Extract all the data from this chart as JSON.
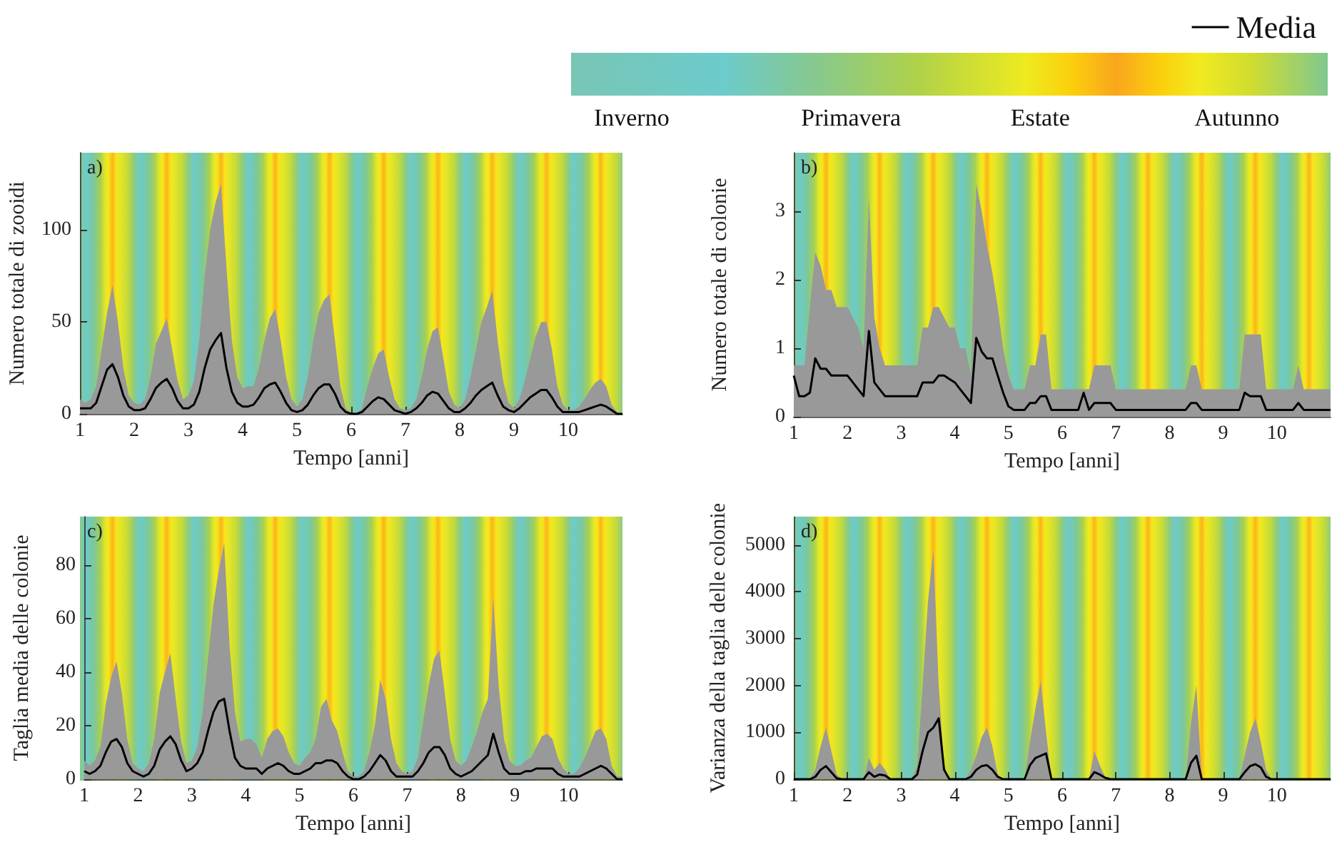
{
  "chart_data": [
    {
      "type": "line",
      "title": "a)",
      "xlabel": "Tempo [anni]",
      "ylabel": "Numero totale di zooidi",
      "legend": "top right",
      "annotations": [
        "Inverno",
        "Primavera",
        "Estate",
        "Autunno"
      ],
      "xlim": [
        1,
        11
      ],
      "xticks": [
        1,
        2,
        3,
        4,
        5,
        6,
        7,
        8,
        9,
        10
      ],
      "ylim": [
        0,
        142
      ],
      "yticks": [
        0,
        50,
        100
      ],
      "x": [
        1,
        1.1,
        1.2,
        1.3,
        1.4,
        1.5,
        1.6,
        1.7,
        1.8,
        1.9,
        2,
        2.1,
        2.2,
        2.3,
        2.4,
        2.5,
        2.6,
        2.7,
        2.8,
        2.9,
        3,
        3.1,
        3.2,
        3.3,
        3.4,
        3.5,
        3.6,
        3.7,
        3.8,
        3.9,
        4,
        4.1,
        4.2,
        4.3,
        4.4,
        4.5,
        4.6,
        4.7,
        4.8,
        4.9,
        5,
        5.1,
        5.2,
        5.3,
        5.4,
        5.5,
        5.6,
        5.7,
        5.8,
        5.9,
        6,
        6.1,
        6.2,
        6.3,
        6.4,
        6.5,
        6.6,
        6.7,
        6.8,
        6.9,
        7,
        7.1,
        7.2,
        7.3,
        7.4,
        7.5,
        7.6,
        7.7,
        7.8,
        7.9,
        8,
        8.1,
        8.2,
        8.3,
        8.4,
        8.5,
        8.6,
        8.7,
        8.8,
        8.9,
        9,
        9.1,
        9.2,
        9.3,
        9.4,
        9.5,
        9.6,
        9.7,
        9.8,
        9.9,
        10,
        10.1,
        10.2,
        10.3,
        10.4,
        10.5,
        10.6,
        10.7,
        10.8,
        10.9,
        11
      ],
      "series": [
        {
          "type": "area",
          "color": "#999999",
          "values": [
            8,
            6,
            8,
            15,
            35,
            55,
            70,
            50,
            25,
            10,
            6,
            5,
            8,
            20,
            38,
            45,
            52,
            35,
            18,
            8,
            10,
            18,
            40,
            75,
            100,
            115,
            125,
            80,
            40,
            20,
            14,
            15,
            15,
            25,
            40,
            52,
            57,
            40,
            20,
            8,
            4,
            8,
            20,
            40,
            55,
            62,
            65,
            40,
            15,
            3,
            0,
            0,
            3,
            15,
            25,
            33,
            35,
            20,
            8,
            3,
            2,
            3,
            8,
            20,
            35,
            45,
            47,
            30,
            12,
            5,
            3,
            8,
            20,
            35,
            50,
            58,
            67,
            40,
            18,
            6,
            3,
            8,
            18,
            30,
            42,
            50,
            50,
            35,
            15,
            5,
            2,
            2,
            4,
            8,
            13,
            17,
            19,
            15,
            5,
            1,
            0
          ]
        },
        {
          "type": "line",
          "name": "Media",
          "color": "#000000",
          "values": [
            3,
            3,
            3,
            6,
            15,
            24,
            27,
            20,
            10,
            4,
            2,
            2,
            3,
            8,
            14,
            17,
            19,
            14,
            7,
            3,
            3,
            5,
            12,
            25,
            35,
            40,
            44,
            25,
            12,
            6,
            4,
            4,
            5,
            9,
            14,
            16,
            17,
            12,
            6,
            2,
            1,
            2,
            5,
            10,
            14,
            16,
            16,
            11,
            4,
            1,
            0,
            0,
            1,
            4,
            7,
            9,
            8,
            5,
            2,
            1,
            0,
            1,
            3,
            6,
            10,
            12,
            11,
            7,
            3,
            1,
            1,
            3,
            6,
            10,
            13,
            15,
            17,
            10,
            4,
            2,
            1,
            3,
            6,
            9,
            11,
            13,
            13,
            9,
            4,
            1,
            1,
            1,
            1,
            2,
            3,
            4,
            5,
            4,
            2,
            0,
            0
          ]
        }
      ]
    },
    {
      "type": "line",
      "title": "b)",
      "xlabel": "Tempo [anni]",
      "ylabel": "Numero totale di colonie",
      "xlim": [
        1,
        11
      ],
      "xticks": [
        1,
        2,
        3,
        4,
        5,
        6,
        7,
        8,
        9,
        10
      ],
      "ylim": [
        0,
        3.85
      ],
      "yticks": [
        0,
        1,
        2,
        3
      ],
      "x": [
        1,
        1.1,
        1.2,
        1.3,
        1.4,
        1.5,
        1.6,
        1.7,
        1.8,
        1.9,
        2,
        2.1,
        2.2,
        2.3,
        2.4,
        2.5,
        2.6,
        2.7,
        2.8,
        2.9,
        3,
        3.1,
        3.2,
        3.3,
        3.4,
        3.5,
        3.6,
        3.7,
        3.8,
        3.9,
        4,
        4.1,
        4.2,
        4.3,
        4.4,
        4.5,
        4.6,
        4.7,
        4.8,
        4.9,
        5,
        5.1,
        5.2,
        5.3,
        5.4,
        5.5,
        5.6,
        5.7,
        5.8,
        5.9,
        6,
        6.1,
        6.2,
        6.3,
        6.4,
        6.5,
        6.6,
        6.7,
        6.8,
        6.9,
        7,
        7.1,
        7.2,
        7.3,
        7.4,
        7.5,
        7.6,
        7.7,
        7.8,
        7.9,
        8,
        8.1,
        8.2,
        8.3,
        8.4,
        8.5,
        8.6,
        8.7,
        8.8,
        8.9,
        9,
        9.1,
        9.2,
        9.3,
        9.4,
        9.5,
        9.6,
        9.7,
        9.8,
        9.9,
        10,
        10.1,
        10.2,
        10.3,
        10.4,
        10.5,
        10.6,
        10.7,
        10.8,
        10.9,
        11
      ],
      "series": [
        {
          "type": "area",
          "color": "#999999",
          "values": [
            0.75,
            0.75,
            0.75,
            1.6,
            2.4,
            2.2,
            1.85,
            1.85,
            1.6,
            1.6,
            1.6,
            1.45,
            1.3,
            1,
            3.2,
            1.45,
            1,
            0.75,
            0.75,
            0.75,
            0.75,
            0.75,
            0.75,
            0.75,
            1.3,
            1.3,
            1.6,
            1.6,
            1.45,
            1.3,
            1.3,
            1,
            1,
            0.6,
            3.4,
            3,
            2.5,
            2.1,
            1.6,
            1,
            0.6,
            0.4,
            0.4,
            0.4,
            0.75,
            0.75,
            1.2,
            1.2,
            0.4,
            0.4,
            0.4,
            0.4,
            0.4,
            0.4,
            0.4,
            0.4,
            0.75,
            0.75,
            0.75,
            0.75,
            0.4,
            0.4,
            0.4,
            0.4,
            0.4,
            0.4,
            0.4,
            0.4,
            0.4,
            0.4,
            0.4,
            0.4,
            0.4,
            0.4,
            0.75,
            0.75,
            0.4,
            0.4,
            0.4,
            0.4,
            0.4,
            0.4,
            0.4,
            0.4,
            1.2,
            1.2,
            1.2,
            1.2,
            0.4,
            0.4,
            0.4,
            0.4,
            0.4,
            0.4,
            0.75,
            0.4,
            0.4,
            0.4,
            0.4,
            0.4,
            0.4
          ]
        },
        {
          "type": "line",
          "color": "#000000",
          "values": [
            0.6,
            0.3,
            0.3,
            0.35,
            0.85,
            0.7,
            0.7,
            0.6,
            0.6,
            0.6,
            0.6,
            0.5,
            0.4,
            0.3,
            1.25,
            0.5,
            0.4,
            0.3,
            0.3,
            0.3,
            0.3,
            0.3,
            0.3,
            0.3,
            0.5,
            0.5,
            0.5,
            0.6,
            0.6,
            0.55,
            0.5,
            0.4,
            0.3,
            0.2,
            1.15,
            0.95,
            0.85,
            0.85,
            0.6,
            0.35,
            0.15,
            0.1,
            0.1,
            0.1,
            0.2,
            0.2,
            0.3,
            0.3,
            0.1,
            0.1,
            0.1,
            0.1,
            0.1,
            0.1,
            0.35,
            0.1,
            0.2,
            0.2,
            0.2,
            0.2,
            0.1,
            0.1,
            0.1,
            0.1,
            0.1,
            0.1,
            0.1,
            0.1,
            0.1,
            0.1,
            0.1,
            0.1,
            0.1,
            0.1,
            0.2,
            0.2,
            0.1,
            0.1,
            0.1,
            0.1,
            0.1,
            0.1,
            0.1,
            0.1,
            0.35,
            0.3,
            0.3,
            0.3,
            0.1,
            0.1,
            0.1,
            0.1,
            0.1,
            0.1,
            0.2,
            0.1,
            0.1,
            0.1,
            0.1,
            0.1,
            0.1
          ]
        }
      ]
    },
    {
      "type": "line",
      "title": "c)",
      "xlabel": "Tempo [anni]",
      "ylabel": "Taglia media delle colonie",
      "xlim": [
        1,
        11
      ],
      "xticks": [
        1,
        2,
        3,
        4,
        5,
        6,
        7,
        8,
        9,
        10
      ],
      "ylim": [
        0,
        98
      ],
      "yticks": [
        0,
        20,
        40,
        60,
        80
      ],
      "x": [
        1,
        1.1,
        1.2,
        1.3,
        1.4,
        1.5,
        1.6,
        1.7,
        1.8,
        1.9,
        2,
        2.1,
        2.2,
        2.3,
        2.4,
        2.5,
        2.6,
        2.7,
        2.8,
        2.9,
        3,
        3.1,
        3.2,
        3.3,
        3.4,
        3.5,
        3.6,
        3.7,
        3.8,
        3.9,
        4,
        4.1,
        4.2,
        4.3,
        4.4,
        4.5,
        4.6,
        4.7,
        4.8,
        4.9,
        5,
        5.1,
        5.2,
        5.3,
        5.4,
        5.5,
        5.6,
        5.7,
        5.8,
        5.9,
        6,
        6.1,
        6.2,
        6.3,
        6.4,
        6.5,
        6.6,
        6.7,
        6.8,
        6.9,
        7,
        7.1,
        7.2,
        7.3,
        7.4,
        7.5,
        7.6,
        7.7,
        7.8,
        7.9,
        8,
        8.1,
        8.2,
        8.3,
        8.4,
        8.5,
        8.6,
        8.7,
        8.8,
        8.9,
        9,
        9.1,
        9.2,
        9.3,
        9.4,
        9.5,
        9.6,
        9.7,
        9.8,
        9.9,
        10,
        10.1,
        10.2,
        10.3,
        10.4,
        10.5,
        10.6,
        10.7,
        10.8,
        10.9,
        11
      ],
      "series": [
        {
          "type": "area",
          "color": "#999999",
          "values": [
            7,
            5,
            7,
            12,
            28,
            38,
            44,
            32,
            15,
            6,
            4,
            3,
            6,
            15,
            32,
            40,
            47,
            30,
            14,
            6,
            7,
            12,
            25,
            45,
            65,
            78,
            88,
            50,
            25,
            14,
            15,
            15,
            13,
            8,
            15,
            18,
            19,
            16,
            10,
            6,
            5,
            8,
            10,
            15,
            27,
            30,
            22,
            18,
            10,
            3,
            1,
            1,
            3,
            10,
            20,
            37,
            30,
            15,
            6,
            3,
            2,
            3,
            8,
            22,
            35,
            45,
            48,
            32,
            15,
            7,
            5,
            7,
            12,
            18,
            25,
            30,
            68,
            35,
            15,
            7,
            5,
            5,
            7,
            8,
            12,
            16,
            17,
            15,
            8,
            4,
            2,
            2,
            4,
            8,
            13,
            18,
            19,
            15,
            5,
            1,
            1
          ]
        },
        {
          "type": "line",
          "color": "#000000",
          "values": [
            3,
            2,
            3,
            5,
            10,
            14,
            15,
            12,
            6,
            3,
            2,
            1,
            2,
            5,
            11,
            14,
            16,
            13,
            7,
            3,
            4,
            6,
            10,
            18,
            25,
            29,
            30,
            18,
            8,
            5,
            4,
            4,
            4,
            2,
            4,
            5,
            6,
            5,
            3,
            2,
            2,
            3,
            4,
            6,
            6,
            7,
            7,
            6,
            3,
            1,
            0,
            0,
            1,
            3,
            6,
            9,
            7,
            3,
            1,
            1,
            1,
            1,
            3,
            6,
            10,
            12,
            12,
            9,
            4,
            2,
            1,
            2,
            3,
            5,
            7,
            9,
            17,
            10,
            4,
            2,
            2,
            2,
            3,
            3,
            4,
            4,
            4,
            4,
            2,
            1,
            1,
            1,
            1,
            2,
            3,
            4,
            5,
            4,
            2,
            0,
            0
          ]
        }
      ]
    },
    {
      "type": "line",
      "title": "d)",
      "xlabel": "Tempo [anni]",
      "ylabel": "Varianza della taglia delle colonie",
      "xlim": [
        1,
        11
      ],
      "xticks": [
        1,
        2,
        3,
        4,
        5,
        6,
        7,
        8,
        9,
        10
      ],
      "ylim": [
        0,
        5600
      ],
      "yticks": [
        0,
        1000,
        2000,
        3000,
        4000,
        5000
      ],
      "x": [
        1,
        1.1,
        1.2,
        1.3,
        1.4,
        1.5,
        1.6,
        1.7,
        1.8,
        1.9,
        2,
        2.1,
        2.2,
        2.3,
        2.4,
        2.5,
        2.6,
        2.7,
        2.8,
        2.9,
        3,
        3.1,
        3.2,
        3.3,
        3.4,
        3.5,
        3.6,
        3.7,
        3.8,
        3.9,
        4,
        4.1,
        4.2,
        4.3,
        4.4,
        4.5,
        4.6,
        4.7,
        4.8,
        4.9,
        5,
        5.1,
        5.2,
        5.3,
        5.4,
        5.5,
        5.6,
        5.7,
        5.8,
        5.9,
        6,
        6.1,
        6.2,
        6.3,
        6.4,
        6.5,
        6.6,
        6.7,
        6.8,
        6.9,
        7,
        7.1,
        7.2,
        7.3,
        7.4,
        7.5,
        7.6,
        7.7,
        7.8,
        7.9,
        8,
        8.1,
        8.2,
        8.3,
        8.4,
        8.5,
        8.6,
        8.7,
        8.8,
        8.9,
        9,
        9.1,
        9.2,
        9.3,
        9.4,
        9.5,
        9.6,
        9.7,
        9.8,
        9.9,
        10,
        10.1,
        10.2,
        10.3,
        10.4,
        10.5,
        10.6,
        10.7,
        10.8,
        10.9,
        11
      ],
      "series": [
        {
          "type": "area",
          "color": "#999999",
          "values": [
            0,
            0,
            0,
            0,
            200,
            700,
            1100,
            600,
            100,
            0,
            0,
            0,
            0,
            0,
            450,
            200,
            350,
            200,
            0,
            0,
            0,
            0,
            0,
            300,
            2000,
            3800,
            4900,
            2000,
            300,
            0,
            0,
            0,
            0,
            200,
            500,
            900,
            1100,
            700,
            100,
            0,
            0,
            0,
            0,
            0,
            800,
            1500,
            2100,
            1000,
            0,
            0,
            0,
            0,
            0,
            0,
            0,
            0,
            600,
            300,
            50,
            0,
            0,
            0,
            0,
            0,
            0,
            0,
            0,
            0,
            0,
            0,
            0,
            0,
            0,
            0,
            1200,
            2000,
            0,
            0,
            0,
            0,
            0,
            0,
            0,
            0,
            500,
            1000,
            1300,
            800,
            200,
            0,
            0,
            0,
            0,
            0,
            0,
            0,
            0,
            0,
            0,
            0,
            0
          ]
        },
        {
          "type": "line",
          "color": "#000000",
          "values": [
            0,
            0,
            0,
            0,
            50,
            200,
            280,
            150,
            20,
            0,
            0,
            0,
            0,
            0,
            150,
            50,
            100,
            80,
            0,
            0,
            0,
            0,
            0,
            100,
            600,
            1000,
            1100,
            1300,
            200,
            0,
            0,
            0,
            0,
            50,
            200,
            280,
            300,
            200,
            50,
            0,
            0,
            0,
            0,
            0,
            300,
            450,
            500,
            550,
            0,
            0,
            0,
            0,
            0,
            0,
            0,
            0,
            150,
            100,
            30,
            0,
            0,
            0,
            0,
            0,
            0,
            0,
            0,
            0,
            0,
            0,
            0,
            0,
            0,
            0,
            350,
            500,
            0,
            0,
            0,
            0,
            0,
            0,
            0,
            0,
            150,
            280,
            320,
            250,
            50,
            0,
            0,
            0,
            0,
            0,
            0,
            0,
            0,
            0,
            0,
            0,
            0
          ]
        }
      ]
    }
  ]
}
